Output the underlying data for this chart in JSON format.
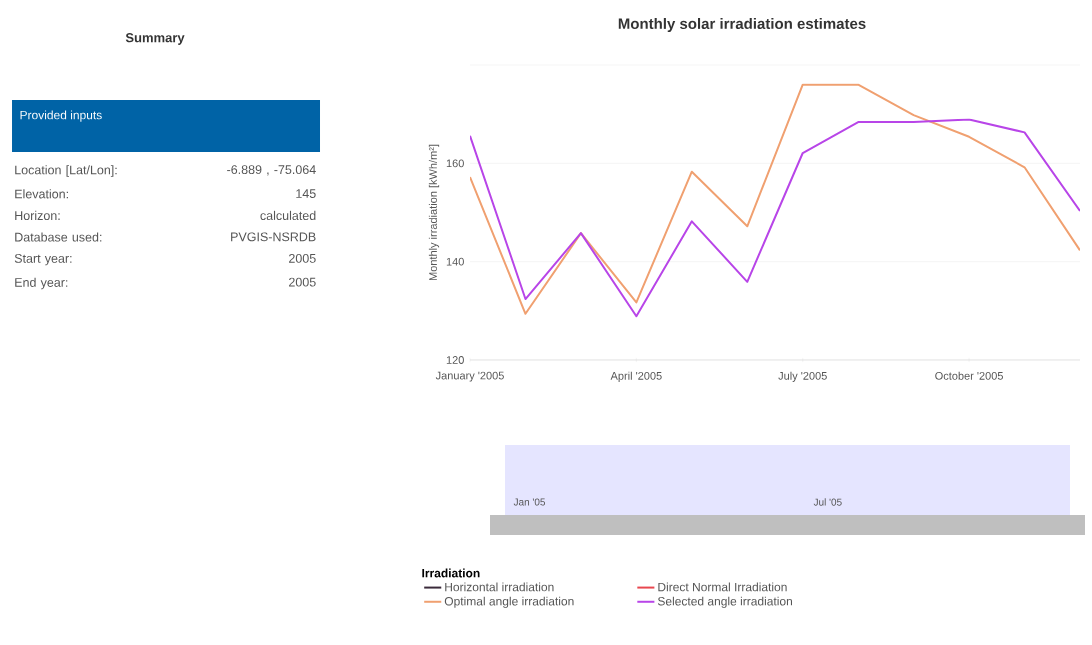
{
  "chart_data": [
    {
      "type": "other",
      "title": "Summary",
      "annotations": [
        "Provided inputs",
        "Location [Lat/Lon]:",
        "-6.889 , -75.064",
        "Elevation:",
        "145",
        "Horizon:",
        "calculated",
        "Database used:",
        "PVGIS-NSRDB",
        "Start year:",
        "2005",
        "End year:",
        "2005"
      ]
    },
    {
      "type": "line",
      "title": "Monthly solar irradiation estimates",
      "ylabel": "Monthly irradiation [kWh/m²]",
      "legend_title": "Irradiation",
      "x": [
        "2005-01",
        "2005-02",
        "2005-03",
        "2005-04",
        "2005-05",
        "2005-06",
        "2005-07",
        "2005-08",
        "2005-09",
        "2005-10",
        "2005-11",
        "2005-12"
      ],
      "series": [
        {
          "name": "Horizontal irradiation",
          "color": "#3a2a3a",
          "values": [
            null,
            null,
            null,
            null,
            null,
            null,
            null,
            null,
            null,
            null,
            null,
            null
          ]
        },
        {
          "name": "Direct Normal Irradiation",
          "color": "#e8474f",
          "values": [
            null,
            null,
            null,
            null,
            null,
            null,
            null,
            null,
            null,
            null,
            null,
            null
          ]
        },
        {
          "name": "Optimal angle irradiation",
          "color": "#f0a070",
          "values": [
            157.2,
            129.4,
            145.8,
            131.7,
            158.3,
            147.2,
            176.0,
            176.0,
            169.8,
            165.4,
            159.2,
            142.3
          ]
        },
        {
          "name": "Selected angle irradiation",
          "color": "#b845e8",
          "values": [
            165.6,
            132.4,
            145.8,
            128.9,
            148.2,
            135.9,
            162.1,
            168.4,
            168.4,
            168.9,
            166.3,
            150.3
          ]
        }
      ],
      "xlim": [
        "2005-01",
        "2005-12"
      ],
      "xticks": [
        {
          "value": "2005-01",
          "label": "January '2005"
        },
        {
          "value": "2005-04",
          "label": "April '2005"
        },
        {
          "value": "2005-07",
          "label": "July '2005"
        },
        {
          "value": "2005-10",
          "label": "October '2005"
        }
      ],
      "ylim": [
        120,
        180
      ],
      "yticks": [
        120,
        140,
        160,
        {
          "value": 180,
          "label": null
        }
      ],
      "grid": "y",
      "legend": "bottom",
      "marker": "none",
      "line_style": "solid",
      "annotations": [
        "Jan '05",
        "Jul '05"
      ]
    }
  ]
}
